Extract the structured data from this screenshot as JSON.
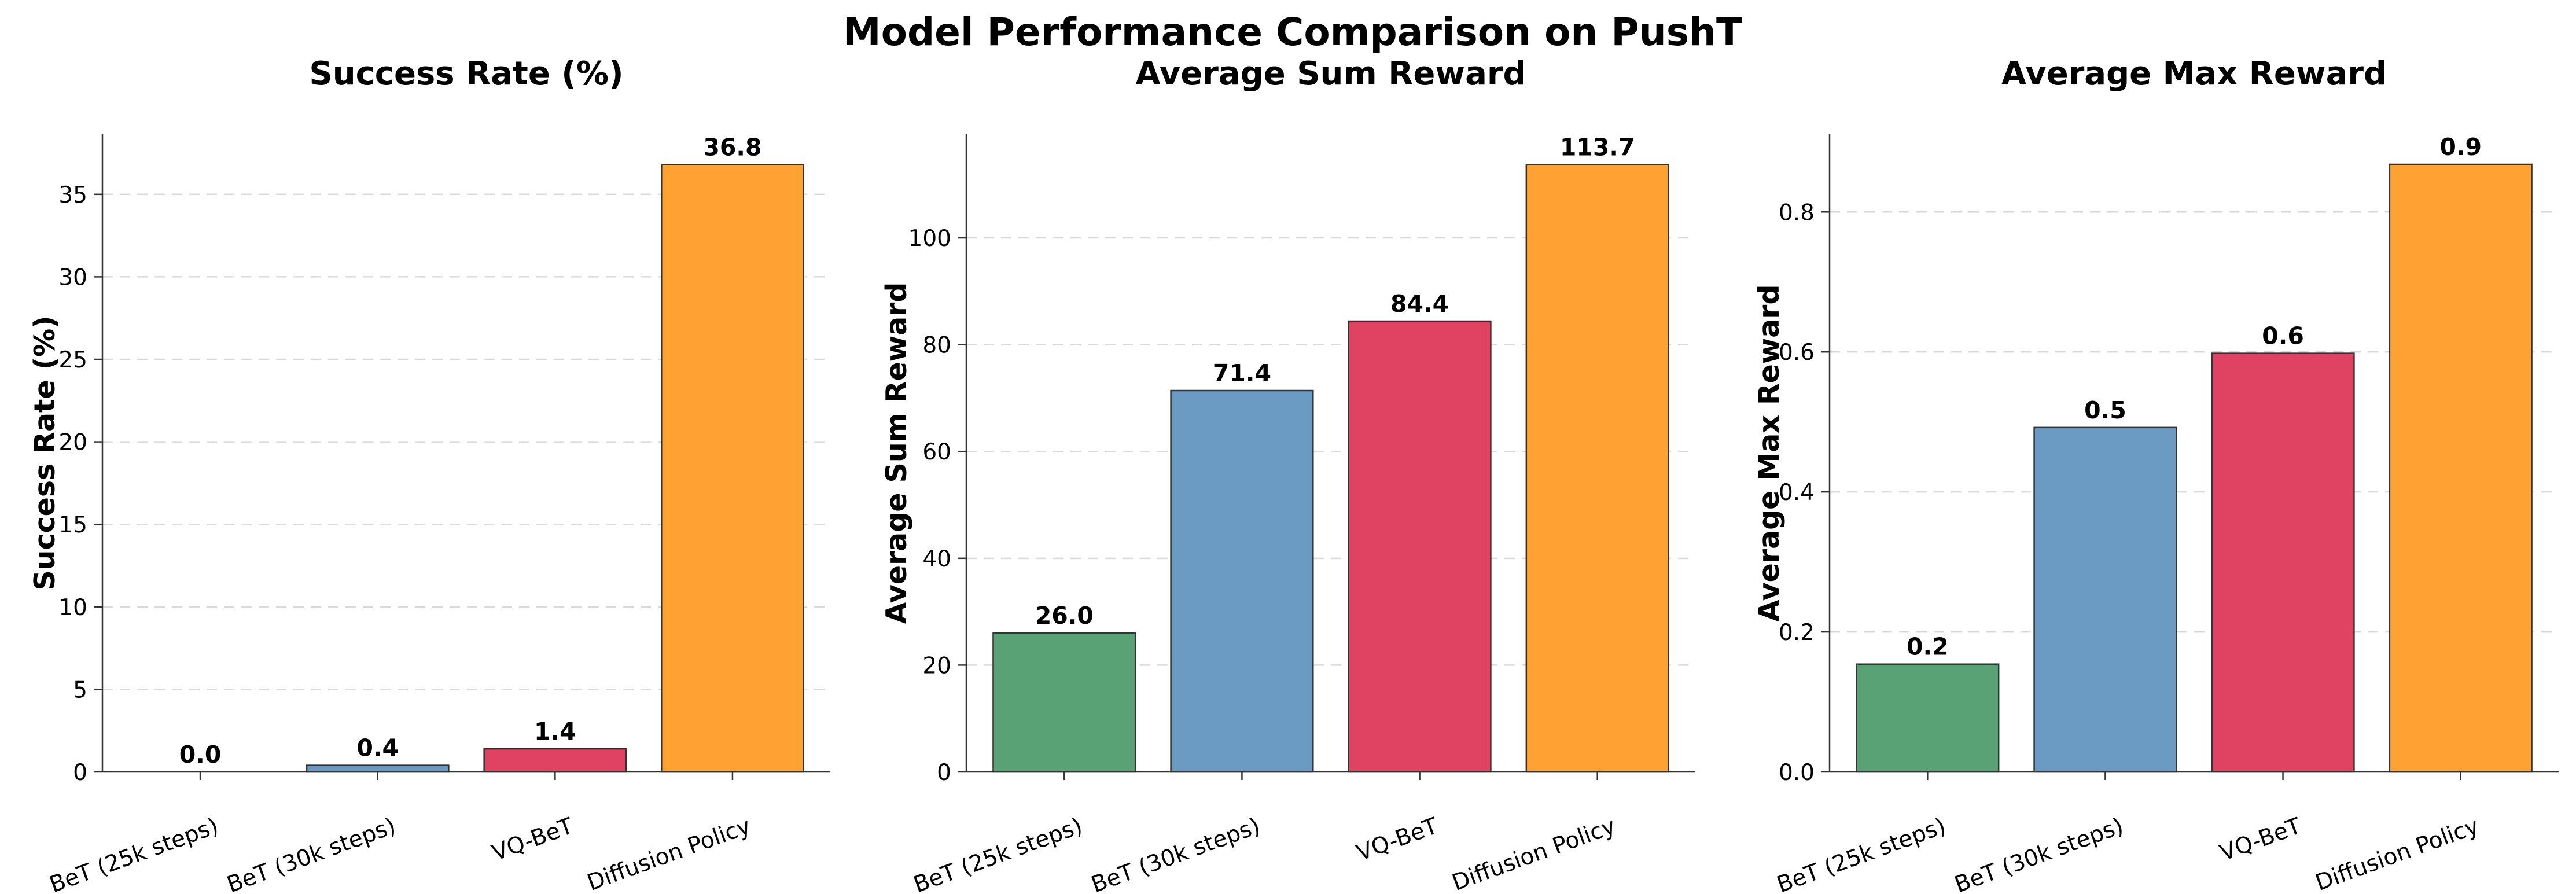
{
  "suptitle": "Model Performance Comparison on PushT",
  "colors": [
    "#59a275",
    "#6b9bc3",
    "#e04262",
    "#ffa233"
  ],
  "chart_data": [
    {
      "type": "bar",
      "title": "Success Rate (%)",
      "xlabel": "",
      "ylabel": "Success Rate (%)",
      "categories": [
        "BeT (25k steps)",
        "BeT (30k steps)",
        "VQ-BeT",
        "Diffusion Policy"
      ],
      "values": [
        0.0,
        0.4,
        1.4,
        36.8
      ],
      "value_labels": [
        "0.0",
        "0.4",
        "1.4",
        "36.8"
      ],
      "ylim": [
        0,
        38.64
      ],
      "yticks": [
        0,
        5,
        10,
        15,
        20,
        25,
        30,
        35
      ],
      "ytick_labels": [
        "0",
        "5",
        "10",
        "15",
        "20",
        "25",
        "30",
        "35"
      ],
      "grid": "y-dashed"
    },
    {
      "type": "bar",
      "title": "Average Sum Reward",
      "xlabel": "",
      "ylabel": "Average Sum Reward",
      "categories": [
        "BeT (25k steps)",
        "BeT (30k steps)",
        "VQ-BeT",
        "Diffusion Policy"
      ],
      "values": [
        26.0,
        71.4,
        84.4,
        113.7
      ],
      "value_labels": [
        "26.0",
        "71.4",
        "84.4",
        "113.7"
      ],
      "ylim": [
        0,
        119.4
      ],
      "yticks": [
        0,
        20,
        40,
        60,
        80,
        100
      ],
      "ytick_labels": [
        "0",
        "20",
        "40",
        "60",
        "80",
        "100"
      ],
      "grid": "y-dashed"
    },
    {
      "type": "bar",
      "title": "Average Max Reward",
      "xlabel": "",
      "ylabel": "Average Max Reward",
      "categories": [
        "BeT (25k steps)",
        "BeT (30k steps)",
        "VQ-BeT",
        "Diffusion Policy"
      ],
      "values": [
        0.154,
        0.492,
        0.598,
        0.868
      ],
      "value_labels": [
        "0.2",
        "0.5",
        "0.6",
        "0.9"
      ],
      "ylim": [
        0,
        0.911
      ],
      "yticks": [
        0,
        0.2,
        0.4,
        0.6,
        0.8
      ],
      "ytick_labels": [
        "0.0",
        "0.2",
        "0.4",
        "0.6",
        "0.8"
      ],
      "grid": "y-dashed"
    }
  ]
}
